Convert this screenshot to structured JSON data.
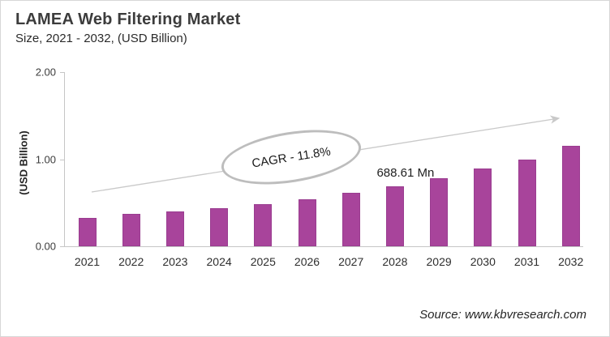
{
  "header": {
    "title": "LAMEA Web Filtering Market",
    "subtitle": "Size, 2021 - 2032, (USD Billion)"
  },
  "chart_data": {
    "type": "bar",
    "title": "LAMEA Web Filtering Market",
    "subtitle": "Size, 2021 - 2032, (USD Billion)",
    "categories": [
      "2021",
      "2022",
      "2023",
      "2024",
      "2025",
      "2026",
      "2027",
      "2028",
      "2029",
      "2030",
      "2031",
      "2032"
    ],
    "values": [
      0.33,
      0.37,
      0.4,
      0.44,
      0.48,
      0.54,
      0.61,
      0.68861,
      0.78,
      0.89,
      1.0,
      1.15
    ],
    "xlabel": "",
    "ylabel": "(USD Billion)",
    "ylim": [
      0,
      2
    ],
    "yticks": [
      "0.00",
      "1.00",
      "2.00"
    ],
    "grid": false,
    "legend": false,
    "bar_color": "#a8449b",
    "annotations": {
      "cagr_label": "CAGR - 11.8%",
      "value_label": {
        "text": "688.61 Mn",
        "category": "2028"
      }
    },
    "trend_arrow": true
  },
  "footer": {
    "source": "Source: www.kbvresearch.com"
  }
}
